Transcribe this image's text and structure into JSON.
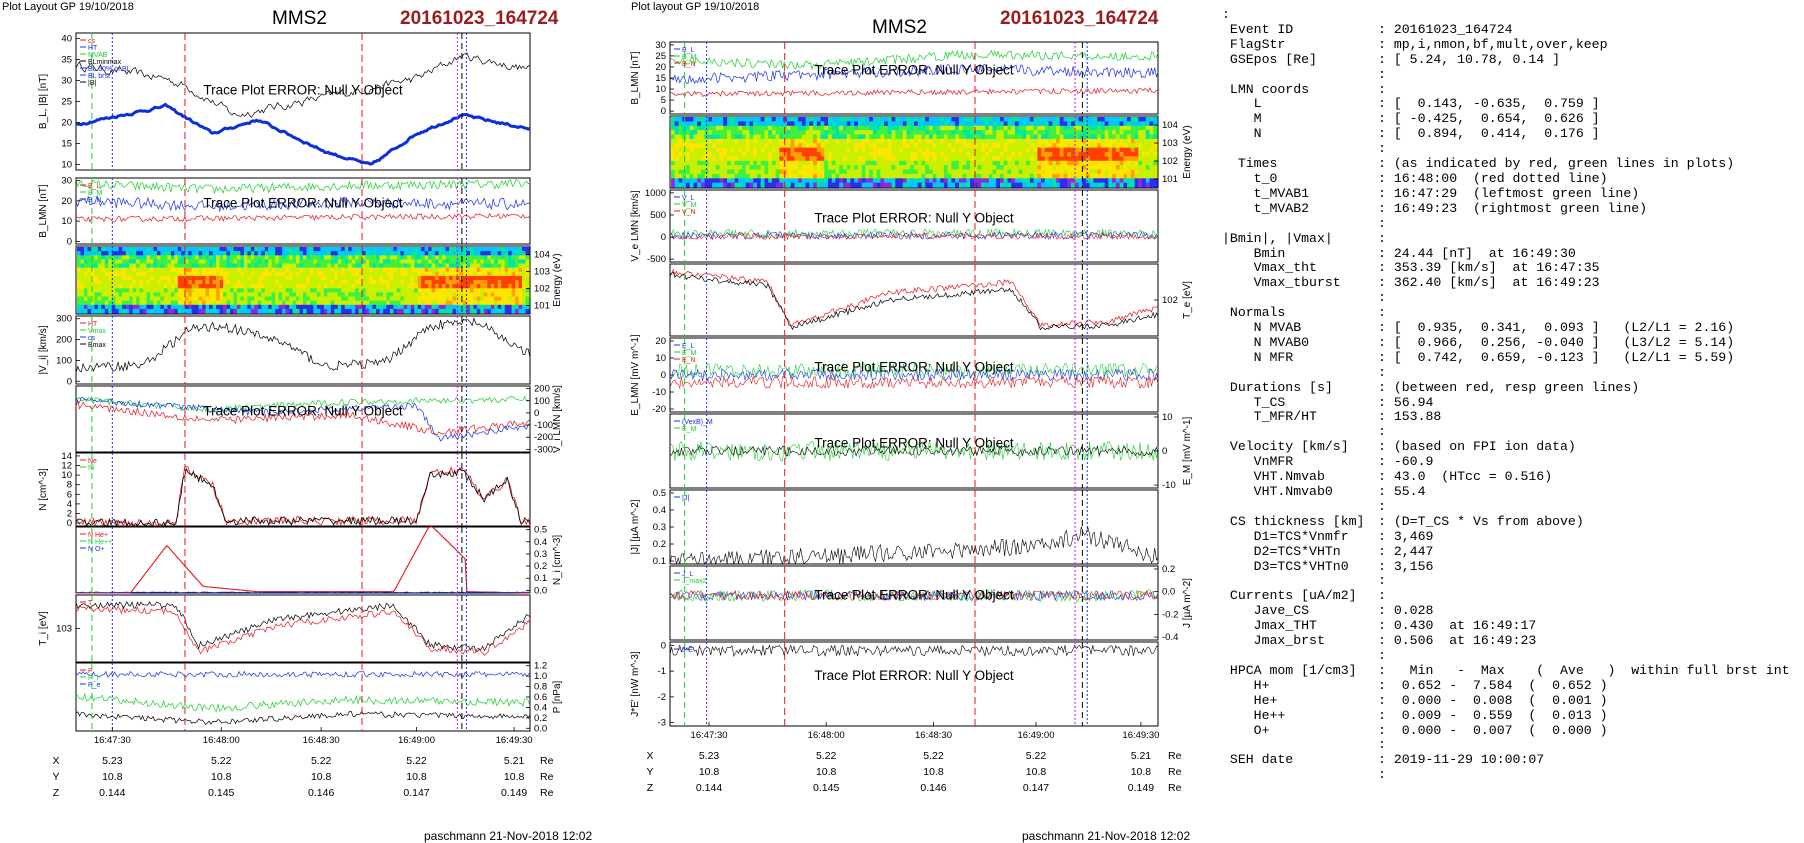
{
  "header": {
    "left_caption": "Plot Layout GP 19/10/2018",
    "right_caption": "Plot layout GP 19/10/2018",
    "spacecraft": "MMS2",
    "event": "20161023_164724",
    "footer_left": "paschmann 21-Nov-2018 12:02",
    "footer_right": "paschmann 21-Nov-2018 12:02"
  },
  "colors": {
    "red": "#e8151b",
    "green": "#17d12a",
    "blue": "#1a2ff0",
    "black": "#000000",
    "magenta": "#e010e0",
    "event": "#9b1c1c",
    "thick_blue": "#0c2fd8"
  },
  "time_axis": {
    "ticks": [
      "16:47:30",
      "16:48:00",
      "16:48:30",
      "16:49:00",
      "16:49:30"
    ],
    "coords": [
      {
        "label": "X",
        "values": [
          "5.23",
          "5.22",
          "5.22",
          "5.22",
          "5.21"
        ],
        "unit": "Re"
      },
      {
        "label": "Y",
        "values": [
          "10.8",
          "10.8",
          "10.8",
          "10.8",
          "10.8"
        ],
        "unit": "Re"
      },
      {
        "label": "Z",
        "values": [
          "0.144",
          "0.145",
          "0.146",
          "0.147",
          "0.149"
        ],
        "unit": "Re"
      }
    ]
  },
  "chart_data": [
    {
      "type": "line",
      "title": "MMS2 20161023_164724",
      "panels": [
        {
          "ylabel": "B_L, |B| [nT]",
          "ylim": [
            10,
            40
          ],
          "ticks": [
            "10",
            "15",
            "20",
            "25",
            "30",
            "35",
            "40"
          ],
          "legend": [
            "cs",
            "HT",
            "MVAB",
            "BLminmax",
            "BL 50% of BL",
            "BL brst",
            "|B|"
          ],
          "message": "Trace Plot ERROR: Null Y Object"
        },
        {
          "ylabel": "B_LMN [nT]",
          "ylim": [
            -5,
            30
          ],
          "ticks": [
            "0",
            "10",
            "20",
            "30"
          ],
          "legend": [
            "B_L",
            "B_M",
            "B_N"
          ],
          "message": "Trace Plot ERROR: Null Y Object"
        },
        {
          "type": "heatmap",
          "ylabel": "Energy (eV)",
          "ticks": [
            "10^1",
            "10^2",
            "10^3",
            "10^4"
          ]
        },
        {
          "ylabel": "|V_i| [km/s]",
          "ylim": [
            0,
            350
          ],
          "ticks": [
            "0",
            "100",
            "200",
            "300"
          ],
          "legend": [
            "HT",
            "Vmax",
            "cs",
            "Bmax"
          ]
        },
        {
          "ylabel": "V_i LMN [km/s]",
          "ylim": [
            -300,
            200
          ],
          "ticks": [
            "-300",
            "-200",
            "-100",
            "0",
            "100",
            "200"
          ],
          "message": "Trace Plot ERROR: Null Y Object"
        },
        {
          "ylabel": "N [cm^-3]",
          "ylim": [
            0,
            14
          ],
          "ticks": [
            "0",
            "2",
            "4",
            "6",
            "8",
            "10",
            "12",
            "14"
          ],
          "legend": [
            "Ne",
            "Ni"
          ]
        },
        {
          "ylabel": "N_i [cm^-3]",
          "ylim": [
            0,
            0.5
          ],
          "ticks": [
            "0.0",
            "0.1",
            "0.2",
            "0.3",
            "0.4",
            "0.5"
          ],
          "legend": [
            "N He+",
            "N He++",
            "N O+"
          ]
        },
        {
          "ylabel": "T_i [eV]",
          "ticks": [
            "10^3"
          ],
          "legend": [
            "T"
          ]
        },
        {
          "ylabel": "P [nPa]",
          "ylim": [
            0,
            1.2
          ],
          "ticks": [
            "0.0",
            "0.2",
            "0.4",
            "0.6",
            "0.8",
            "1.0",
            "1.2"
          ],
          "legend": [
            "P",
            "P_i",
            "P_e"
          ]
        }
      ]
    },
    {
      "type": "line",
      "title": "MMS2 20161023_164724",
      "panels": [
        {
          "ylabel": "B_LMN [nT]",
          "ylim": [
            -5,
            35
          ],
          "ticks": [
            "0",
            "5",
            "10",
            "15",
            "20",
            "25",
            "30"
          ],
          "legend": [
            "B_L",
            "B_M",
            "B_N"
          ],
          "message": "Trace Plot ERROR: Null Y Object"
        },
        {
          "type": "heatmap",
          "ylabel": "Energy (eV)",
          "ticks": [
            "10^1",
            "10^2",
            "10^3",
            "10^4"
          ]
        },
        {
          "ylabel": "V_e LMN [km/s]",
          "ylim": [
            -700,
            1200
          ],
          "ticks": [
            "-500",
            "0",
            "500",
            "1000"
          ],
          "legend": [
            "V_L",
            "V_M",
            "V_N"
          ],
          "message": "Trace Plot ERROR: Null Y Object"
        },
        {
          "ylabel": "T_e [eV]",
          "ticks": [
            "10^2"
          ]
        },
        {
          "ylabel": "E_LMN [mV m^-1]",
          "ylim": [
            -25,
            25
          ],
          "ticks": [
            "-20",
            "-10",
            "0",
            "10",
            "20"
          ],
          "legend": [
            "E_L",
            "E_M",
            "E_N"
          ],
          "message": "Trace Plot ERROR: Null Y Object"
        },
        {
          "ylabel": "E_M [mV m^-1]",
          "ylim": [
            -15,
            15
          ],
          "ticks": [
            "-10",
            "0",
            "10"
          ],
          "legend": [
            "(VexB)_M",
            "E_M"
          ],
          "message": "Trace Plot ERROR: Null Y Object"
        },
        {
          "ylabel": "|J| [µA m^-2]",
          "ylim": [
            0,
            0.5
          ],
          "ticks": [
            "0.1",
            "0.2",
            "0.3",
            "0.4",
            "0.5"
          ],
          "legend": [
            "|J|"
          ]
        },
        {
          "ylabel": "J [µA m^-2]",
          "ylim": [
            -0.45,
            0.3
          ],
          "ticks": [
            "-0.4",
            "-0.2",
            "0.0",
            "0.2"
          ],
          "legend": [
            "J_L",
            "J_max2"
          ],
          "message": "Trace Plot ERROR: Null Y Object"
        },
        {
          "ylabel": "J*E' [nW m^-3]",
          "ylim": [
            -3.5,
            0.4
          ],
          "ticks": [
            "-3",
            "-2",
            "-1",
            "0"
          ],
          "legend": [
            "J*E'"
          ],
          "message": "Trace Plot ERROR: Null Y Object"
        }
      ]
    }
  ],
  "info": {
    "rows": [
      {
        "k": ":",
        "v": ""
      },
      {
        "k": " Event ID",
        "v": ": 20161023_164724"
      },
      {
        "k": " FlagStr",
        "v": ": mp,i,nmon,bf,mult,over,keep"
      },
      {
        "k": " GSEpos [Re]",
        "v": ": [ 5.24, 10.78, 0.14 ]"
      },
      {
        "k": "",
        "v": ":"
      },
      {
        "k": " LMN coords",
        "v": ":"
      },
      {
        "k": "    L",
        "v": ": [  0.143, -0.635,  0.759 ]"
      },
      {
        "k": "    M",
        "v": ": [ -0.425,  0.654,  0.626 ]"
      },
      {
        "k": "    N",
        "v": ": [  0.894,  0.414,  0.176 ]"
      },
      {
        "k": "",
        "v": ":"
      },
      {
        "k": "  Times",
        "v": ": (as indicated by red, green lines in plots)"
      },
      {
        "k": "    t_0",
        "v": ": 16:48:00  (red dotted line)"
      },
      {
        "k": "    t_MVAB1",
        "v": ": 16:47:29  (leftmost green line)"
      },
      {
        "k": "    t_MVAB2",
        "v": ": 16:49:23  (rightmost green line)"
      },
      {
        "k": "",
        "v": ":"
      },
      {
        "k": "|Bmin|, |Vmax|",
        "v": ":"
      },
      {
        "k": "    Bmin",
        "v": ": 24.44 [nT]  at 16:49:30"
      },
      {
        "k": "    Vmax_tht",
        "v": ": 353.39 [km/s]  at 16:47:35"
      },
      {
        "k": "    Vmax_tburst",
        "v": ": 362.40 [km/s]  at 16:49:23"
      },
      {
        "k": "",
        "v": ":"
      },
      {
        "k": " Normals",
        "v": ":"
      },
      {
        "k": "    N MVAB",
        "v": ": [  0.935,  0.341,  0.093 ]   (L2/L1 = 2.16)"
      },
      {
        "k": "    N MVAB0",
        "v": ": [  0.966,  0.256, -0.040 ]   (L3/L2 = 5.14)"
      },
      {
        "k": "    N MFR",
        "v": ": [  0.742,  0.659, -0.123 ]   (L2/L1 = 5.59)"
      },
      {
        "k": "",
        "v": ":"
      },
      {
        "k": " Durations [s]",
        "v": ": (between red, resp green lines)"
      },
      {
        "k": "    T_CS",
        "v": ": 56.94"
      },
      {
        "k": "    T_MFR/HT",
        "v": ": 153.88"
      },
      {
        "k": "",
        "v": ":"
      },
      {
        "k": " Velocity [km/s]",
        "v": ": (based on FPI ion data)"
      },
      {
        "k": "    VnMFR",
        "v": ": -60.9"
      },
      {
        "k": "    VHT.Nmvab",
        "v": ": 43.0  (HTcc = 0.516)"
      },
      {
        "k": "    VHT.Nmvab0",
        "v": ": 55.4"
      },
      {
        "k": "",
        "v": ":"
      },
      {
        "k": " CS thickness [km]",
        "v": ": (D=T_CS * Vs from above)"
      },
      {
        "k": "    D1=TCS*Vnmfr",
        "v": ": 3,469"
      },
      {
        "k": "    D2=TCS*VHTn",
        "v": ": 2,447"
      },
      {
        "k": "    D3=TCS*VHTn0",
        "v": ": 3,156"
      },
      {
        "k": "",
        "v": ":"
      },
      {
        "k": " Currents [uA/m2]",
        "v": ":"
      },
      {
        "k": "    Jave_CS",
        "v": ": 0.028"
      },
      {
        "k": "    Jmax_THT",
        "v": ": 0.430  at 16:49:17"
      },
      {
        "k": "    Jmax_brst",
        "v": ": 0.506  at 16:49:23"
      },
      {
        "k": "",
        "v": ":"
      },
      {
        "k": " HPCA mom [1/cm3]",
        "v": ":   Min   -  Max    (  Ave   )  within full brst int"
      },
      {
        "k": "    H+",
        "v": ":  0.652 -  7.584  (  0.652 )"
      },
      {
        "k": "    He+",
        "v": ":  0.000 -  0.008  (  0.001 )"
      },
      {
        "k": "    He++",
        "v": ":  0.009 -  0.559  (  0.013 )"
      },
      {
        "k": "    O+",
        "v": ":  0.000 -  0.007  (  0.000 )"
      },
      {
        "k": "",
        "v": ":"
      },
      {
        "k": " SEH date",
        "v": ": 2019-11-29 10:00:07"
      },
      {
        "k": "",
        "v": ":"
      }
    ]
  }
}
